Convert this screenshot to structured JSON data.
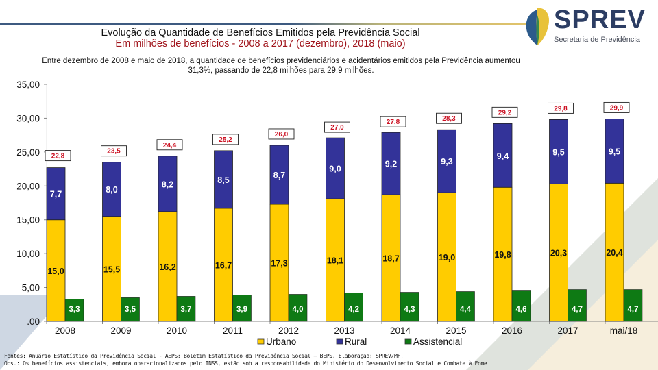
{
  "header": {
    "title": "Evolução da Quantidade de Benefícios Emitidos pela Previdência Social",
    "subtitle": "Em milhões de benefícios - 2008 a 2017 (dezembro), 2018 (maio)",
    "description_line1": "Entre dezembro de 2008 e maio de 2018, a quantidade de benefícios previdenciários e acidentários emitidos pela Previdência aumentou",
    "description_line2": "31,3%, passando de 22,8 milhões para 29,9 milhões."
  },
  "logo": {
    "name": "SPREV",
    "tagline": "Secretaria de Previdência",
    "colors": {
      "blue": "#2c3d63",
      "yellow": "#e8c23a",
      "green": "#3a8a4a"
    }
  },
  "footer": {
    "sources": "Fontes: Anuário Estatístico da Previdência Social - AEPS; Boletim Estatístico da Previdência Social – BEPS. Elaboração: SPREV/MF.",
    "notes": "Obs.: Os benefícios assistenciais, embora operacionalizados pelo INSS, estão sob a responsabilidade do Ministério do Desenvolvimento Social e Combate à Fome"
  },
  "chart_data": {
    "type": "bar",
    "stacking": "Urbano + Rural stacked; Assistencial clustered beside",
    "categories": [
      "2008",
      "2009",
      "2010",
      "2011",
      "2012",
      "2013",
      "2014",
      "2015",
      "2016",
      "2017",
      "mai/18"
    ],
    "series": [
      {
        "name": "Urbano",
        "color": "#ffcc00",
        "values": [
          15.0,
          15.5,
          16.2,
          16.7,
          17.3,
          18.1,
          18.7,
          19.0,
          19.8,
          20.3,
          20.4
        ],
        "labels": [
          "15,0",
          "15,5",
          "16,2",
          "16,7",
          "17,3",
          "18,1",
          "18,7",
          "19,0",
          "19,8",
          "20,3",
          "20,4"
        ]
      },
      {
        "name": "Rural",
        "color": "#333399",
        "values": [
          7.7,
          8.0,
          8.2,
          8.5,
          8.7,
          9.0,
          9.2,
          9.3,
          9.4,
          9.5,
          9.5
        ],
        "labels": [
          "7,7",
          "8,0",
          "8,2",
          "8,5",
          "8,7",
          "9,0",
          "9,2",
          "9,3",
          "9,4",
          "9,5",
          "9,5"
        ]
      },
      {
        "name": "Assistencial",
        "color": "#0e7a14",
        "values": [
          3.3,
          3.5,
          3.7,
          3.9,
          4.0,
          4.2,
          4.3,
          4.4,
          4.6,
          4.7,
          4.7
        ],
        "labels": [
          "3,3",
          "3,5",
          "3,7",
          "3,9",
          "4,0",
          "4,2",
          "4,3",
          "4,4",
          "4,6",
          "4,7",
          "4,7"
        ]
      }
    ],
    "totals": [
      22.8,
      23.5,
      24.4,
      25.2,
      26.0,
      27.0,
      27.8,
      28.3,
      29.2,
      29.8,
      29.9
    ],
    "total_labels": [
      "22,8",
      "23,5",
      "24,4",
      "25,2",
      "26,0",
      "27,0",
      "27,8",
      "28,3",
      "29,2",
      "29,8",
      "29,9"
    ],
    "yticks": [
      ".00",
      "5,00",
      "10,00",
      "15,00",
      "20,00",
      "25,00",
      "30,00",
      "35,00"
    ],
    "ytick_values": [
      0,
      5,
      10,
      15,
      20,
      25,
      30,
      35
    ],
    "ylim": [
      0,
      35
    ],
    "title": "",
    "xlabel": "",
    "ylabel": "",
    "grid": false,
    "legend_position": "bottom-center",
    "total_label_color": "#cc1122"
  }
}
